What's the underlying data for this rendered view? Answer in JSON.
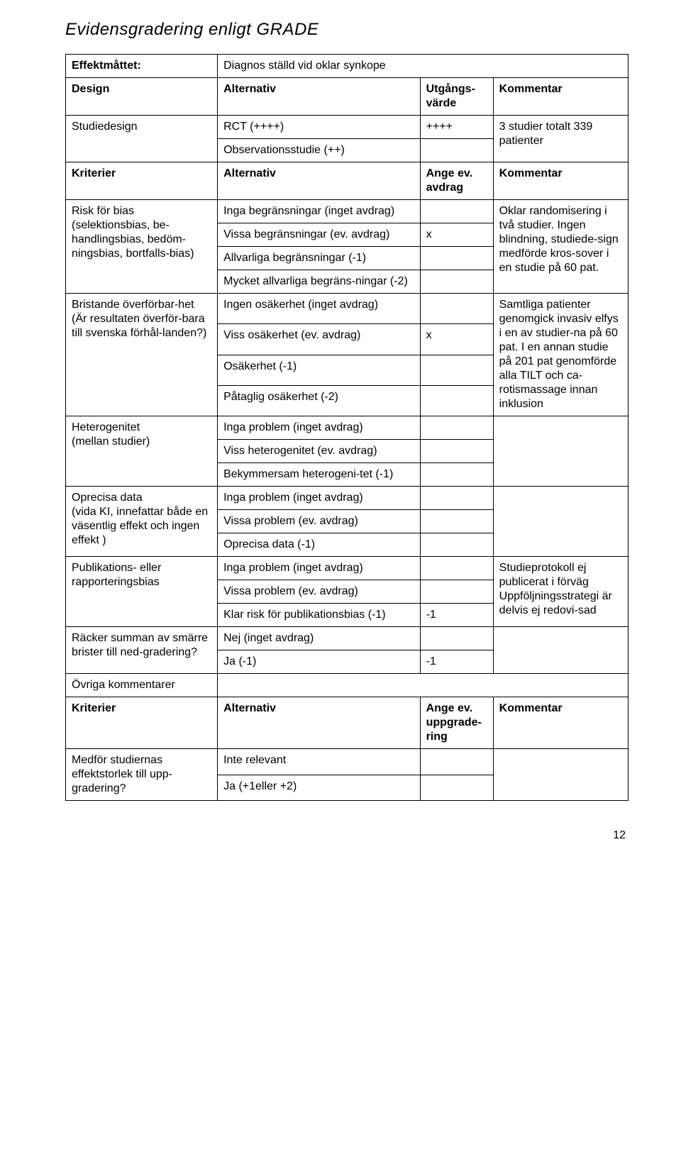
{
  "page": {
    "title": "Evidensgradering enligt GRADE",
    "page_number": "12"
  },
  "colors": {
    "text": "#000000",
    "border": "#000000",
    "background": "#ffffff"
  },
  "rows": {
    "effekt": {
      "label": "Effektmåttet:",
      "value": "Diagnos ställd vid oklar synkope"
    },
    "design_hdr": {
      "c1": "Design",
      "c2": "Alternativ",
      "c3": "Utgångs-värde",
      "c4": "Kommentar"
    },
    "studiedesign": {
      "c1": "Studiedesign",
      "c2a": "RCT (++++)",
      "c2b": "Observationsstudie (++)",
      "c3": "++++",
      "c4": "3 studier totalt 339 patienter"
    },
    "kriterier_hdr": {
      "c1": "Kriterier",
      "c2": "Alternativ",
      "c3": "Ange ev. avdrag",
      "c4": "Kommentar"
    },
    "risk": {
      "c1": "Risk för bias (selektionsbias, be-handlingsbias, bedöm-ningsbias, bortfalls-bias)",
      "c2a": "Inga begränsningar (inget avdrag)",
      "c2b": "Vissa begränsningar (ev. avdrag)",
      "c2c": "Allvarliga begränsningar (-1)",
      "c2d": "Mycket allvarliga begräns-ningar (-2)",
      "c3b": "x",
      "c4": "Oklar randomisering i två studier. Ingen blindning, studiede-sign medförde kros-sover i en studie på 60 pat."
    },
    "bristande": {
      "c1": "Bristande överförbar-het\n(Är resultaten överför-bara till svenska förhål-landen?)",
      "c2a": "Ingen osäkerhet (inget avdrag)",
      "c2b": "Viss osäkerhet (ev. avdrag)",
      "c2c": "Osäkerhet (-1)",
      "c2d": "Påtaglig osäkerhet (-2)",
      "c3b": "x",
      "c4": "Samtliga patienter genomgick invasiv elfys i en av studier-na på 60 pat. I en annan studie på 201 pat genomförde alla TILT och ca-rotismassage innan inklusion"
    },
    "hetero": {
      "c1": "Heterogenitet\n(mellan studier)",
      "c2a": "Inga problem (inget avdrag)",
      "c2b": "Viss heterogenitet (ev. avdrag)",
      "c2c": "Bekymmersam heterogeni-tet (-1)"
    },
    "oprecisa": {
      "c1": "Oprecisa data\n(vida KI, innefattar både en väsentlig effekt och ingen effekt )",
      "c2a": "Inga problem (inget avdrag)",
      "c2b": "Vissa problem (ev. avdrag)",
      "c2c": "Oprecisa data (-1)"
    },
    "publik": {
      "c1": "Publikations- eller rapporteringsbias",
      "c2a": "Inga problem (inget avdrag)",
      "c2b": "Vissa problem (ev. avdrag)",
      "c2c": "Klar risk för publikationsbias (-1)",
      "c3c": "-1",
      "c4": "Studieprotokoll ej publicerat i förväg Uppföljningsstrategi är delvis ej redovi-sad"
    },
    "racker": {
      "c1": "Räcker summan av smärre brister till ned-gradering?",
      "c2a": "Nej (inget avdrag)",
      "c2b": "Ja (-1)",
      "c3b": "-1"
    },
    "ovriga": {
      "c1": "Övriga kommentarer"
    },
    "kriterier2_hdr": {
      "c1": "Kriterier",
      "c2": "Alternativ",
      "c3": "Ange ev. uppgrade-ring",
      "c4": "Kommentar"
    },
    "medfor": {
      "c1": "Medför studiernas effektstorlek till upp-gradering?",
      "c2a": "Inte relevant",
      "c2b": "Ja (+1eller +2)"
    }
  }
}
